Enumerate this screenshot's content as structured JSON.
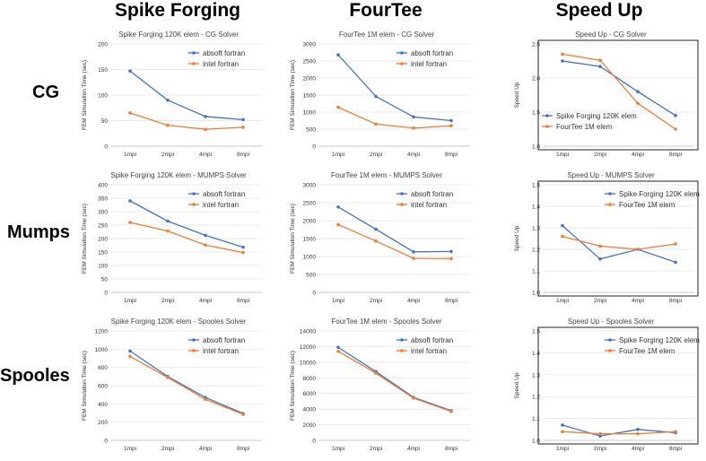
{
  "headers": {
    "columns": [
      "Spike Forging",
      "FourTee",
      "Speed Up"
    ],
    "rows": [
      "CG",
      "Mumps",
      "Spooles"
    ]
  },
  "colors": {
    "absoft": "#4472C4",
    "intel": "#ED7D31"
  },
  "chart_data": [
    {
      "id": "cg-spike",
      "type": "line",
      "title": "Spike Forging  120K elem - CG Solver",
      "ylabel": "FEM Simulation Time (sec)",
      "categories": [
        "1mpi",
        "2mpi",
        "4mpi",
        "8mpi"
      ],
      "ylim": [
        0,
        200
      ],
      "yticks": [
        0,
        50,
        100,
        150,
        200
      ],
      "legend_position": "top-right",
      "series": [
        {
          "name": "absoft fortran",
          "values": [
            147,
            90,
            58,
            52
          ]
        },
        {
          "name": "intel fortran",
          "values": [
            65,
            41,
            33,
            37
          ]
        }
      ]
    },
    {
      "id": "cg-fourtee",
      "type": "line",
      "title": "FourTee  1M elem - CG Solver",
      "ylabel": "FEM Simulation Time (sec)",
      "categories": [
        "1mpi",
        "2mpi",
        "4mpi",
        "8mpi"
      ],
      "ylim": [
        0,
        3000
      ],
      "yticks": [
        0,
        500,
        1000,
        1500,
        2000,
        2500,
        3000
      ],
      "legend_position": "top-right",
      "series": [
        {
          "name": "absoft fortran",
          "values": [
            2680,
            1460,
            860,
            750
          ]
        },
        {
          "name": "intel fortran",
          "values": [
            1140,
            650,
            530,
            600
          ]
        }
      ]
    },
    {
      "id": "cg-speedup",
      "type": "line",
      "title": "Speed Up - CG Solver",
      "ylabel": "Speed Up",
      "categories": [
        "1mpi",
        "2mpi",
        "4mpi",
        "8mpi"
      ],
      "ylim": [
        1.0,
        2.5
      ],
      "yticks": [
        1.0,
        1.5,
        2.0,
        2.5
      ],
      "tick_decimals": 1,
      "legend_position": "bottom-left",
      "series": [
        {
          "name": "Spike Forging  120K elem",
          "values": [
            2.25,
            2.17,
            1.8,
            1.45
          ]
        },
        {
          "name": "FourTee  1M elem",
          "values": [
            2.35,
            2.26,
            1.63,
            1.25
          ]
        }
      ]
    },
    {
      "id": "mumps-spike",
      "type": "line",
      "title": "Spike Forging  120K elem - MUMPS Solver",
      "ylabel": "FEM Simulation Time (sec)",
      "categories": [
        "1mpi",
        "2mpi",
        "4mpi",
        "8mpi"
      ],
      "ylim": [
        0,
        400
      ],
      "yticks": [
        0,
        50,
        100,
        150,
        200,
        250,
        300,
        350,
        400
      ],
      "legend_position": "top-right",
      "series": [
        {
          "name": "absoft fortran",
          "values": [
            340,
            265,
            212,
            168
          ]
        },
        {
          "name": "intel fortran",
          "values": [
            260,
            228,
            176,
            148
          ]
        }
      ]
    },
    {
      "id": "mumps-fourtee",
      "type": "line",
      "title": "FourTee  1M elem - MUMPS Solver",
      "ylabel": "FEM Simulation Time (sec)",
      "categories": [
        "1mpi",
        "2mpi",
        "4mpi",
        "8mpi"
      ],
      "ylim": [
        0,
        3000
      ],
      "yticks": [
        0,
        500,
        1000,
        1500,
        2000,
        2500,
        3000
      ],
      "legend_position": "top-right",
      "series": [
        {
          "name": "absoft fortran",
          "values": [
            2380,
            1760,
            1130,
            1140
          ]
        },
        {
          "name": "intel fortran",
          "values": [
            1890,
            1430,
            950,
            940
          ]
        }
      ]
    },
    {
      "id": "mumps-speedup",
      "type": "line",
      "title": "Speed Up - MUMPS Solver",
      "ylabel": "Speed Up",
      "categories": [
        "1mpi",
        "2mpi",
        "4mpi",
        "8mpi"
      ],
      "ylim": [
        1.0,
        1.5
      ],
      "yticks": [
        1.0,
        1.1,
        1.2,
        1.3,
        1.4,
        1.5
      ],
      "tick_decimals": 1,
      "legend_position": "top-right",
      "series": [
        {
          "name": "Spike Forging  120K elem",
          "values": [
            1.31,
            1.155,
            1.2,
            1.14
          ]
        },
        {
          "name": "FourTee  1M elem",
          "values": [
            1.26,
            1.215,
            1.2,
            1.225
          ]
        }
      ]
    },
    {
      "id": "spooles-spike",
      "type": "line",
      "title": "Spike Forging  120K elem - Spooles Solver",
      "ylabel": "FEM Simulation Time (sec)",
      "categories": [
        "1mpi",
        "2mpi",
        "4mpi",
        "8mpi"
      ],
      "ylim": [
        0,
        1200
      ],
      "yticks": [
        0,
        200,
        400,
        600,
        800,
        1000,
        1200
      ],
      "legend_position": "top-right",
      "series": [
        {
          "name": "absoft fortran",
          "values": [
            980,
            700,
            470,
            295
          ]
        },
        {
          "name": "intel fortran",
          "values": [
            920,
            690,
            450,
            285
          ]
        }
      ]
    },
    {
      "id": "spooles-fourtee",
      "type": "line",
      "title": "FourTee  1M elem - Spooles Solver",
      "ylabel": "FEM Simulation Time (sec)",
      "categories": [
        "1mpi",
        "2mpi",
        "4mpi",
        "8mpi"
      ],
      "ylim": [
        0,
        14000
      ],
      "yticks": [
        0,
        2000,
        4000,
        6000,
        8000,
        10000,
        12000,
        14000
      ],
      "legend_position": "top-right",
      "series": [
        {
          "name": "absoft fortran",
          "values": [
            11900,
            8800,
            5500,
            3800
          ]
        },
        {
          "name": "intel fortran",
          "values": [
            11400,
            8600,
            5400,
            3700
          ]
        }
      ]
    },
    {
      "id": "spooles-speedup",
      "type": "line",
      "title": "Speed Up - Spooles Solver",
      "ylabel": "Speed Up",
      "categories": [
        "1mpi",
        "2mpi",
        "4mpi",
        "8mpi"
      ],
      "ylim": [
        1.0,
        1.5
      ],
      "yticks": [
        1.0,
        1.1,
        1.2,
        1.3,
        1.4,
        1.5
      ],
      "tick_decimals": 1,
      "legend_position": "top-right",
      "series": [
        {
          "name": "Spike Forging  120K elem",
          "values": [
            1.07,
            1.02,
            1.05,
            1.035
          ]
        },
        {
          "name": "FourTee  1M elem",
          "values": [
            1.04,
            1.03,
            1.03,
            1.04
          ]
        }
      ]
    }
  ]
}
